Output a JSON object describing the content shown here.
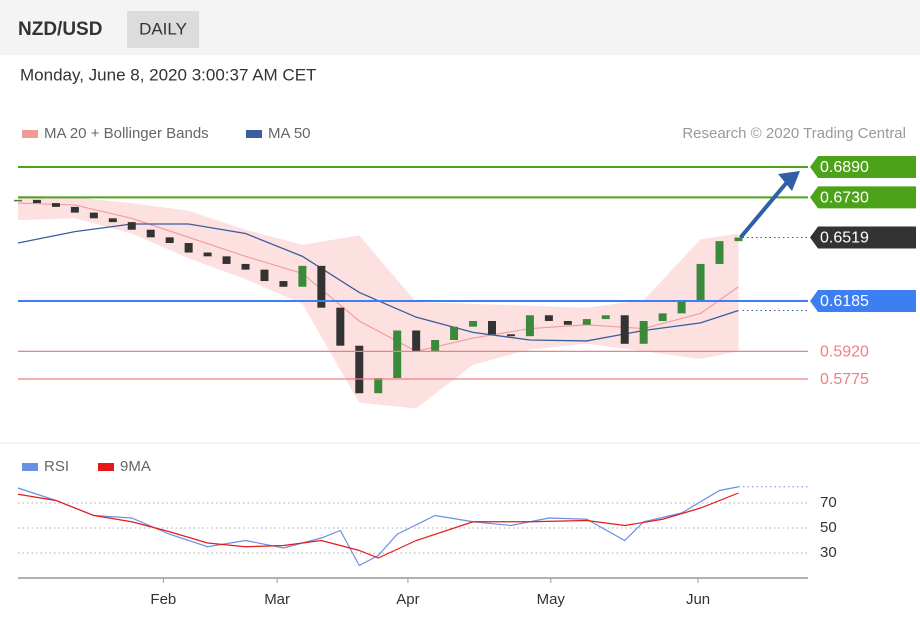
{
  "header": {
    "symbol": "NZD/USD",
    "period": "DAILY",
    "date": "Monday, June 8, 2020 3:00:37 AM CET"
  },
  "chart_data": [
    {
      "type": "candlestick",
      "source": "Research © 2020 Trading Central",
      "xlim": [
        0,
        125
      ],
      "ylim": [
        0.5454,
        0.6953
      ],
      "x": [
        0,
        3,
        6,
        9,
        12,
        15,
        18,
        21,
        24,
        27,
        30,
        33,
        36,
        39,
        42,
        45,
        48,
        51,
        54,
        57,
        60,
        63,
        66,
        69,
        72,
        75,
        78,
        81,
        84,
        87,
        90,
        93,
        96,
        99,
        102,
        105,
        108,
        111,
        114
      ],
      "values": [
        0.6717,
        0.67,
        0.668,
        0.665,
        0.662,
        0.66,
        0.656,
        0.652,
        0.649,
        0.644,
        0.642,
        0.638,
        0.635,
        0.629,
        0.626,
        0.637,
        0.615,
        0.595,
        0.57,
        0.578,
        0.603,
        0.592,
        0.598,
        0.605,
        0.608,
        0.601,
        0.6,
        0.611,
        0.608,
        0.606,
        0.609,
        0.611,
        0.596,
        0.608,
        0.612,
        0.619,
        0.638,
        0.65,
        0.6519
      ],
      "up_color": "#3b8a3b",
      "down_color": "#333333",
      "series": [
        {
          "name": "MA 20 + Bollinger Bands",
          "color": "#f29a9a",
          "band_color": "#fde1e1",
          "x": [
            0,
            9,
            18,
            27,
            36,
            45,
            54,
            63,
            72,
            81,
            90,
            99,
            108,
            114
          ],
          "values": [
            0.67,
            0.669,
            0.662,
            0.652,
            0.642,
            0.633,
            0.608,
            0.592,
            0.599,
            0.604,
            0.606,
            0.604,
            0.612,
            0.626
          ],
          "upper": [
            0.674,
            0.673,
            0.67,
            0.666,
            0.656,
            0.648,
            0.653,
            0.618,
            0.617,
            0.616,
            0.615,
            0.619,
            0.651,
            0.654
          ],
          "lower": [
            0.661,
            0.662,
            0.654,
            0.641,
            0.63,
            0.617,
            0.565,
            0.562,
            0.585,
            0.593,
            0.596,
            0.592,
            0.588,
            0.592
          ]
        },
        {
          "name": "MA 50",
          "color": "#3a5d9c",
          "x": [
            0,
            9,
            18,
            27,
            36,
            45,
            54,
            63,
            72,
            81,
            90,
            99,
            108,
            114
          ],
          "values": [
            0.649,
            0.655,
            0.659,
            0.659,
            0.654,
            0.642,
            0.623,
            0.61,
            0.602,
            0.598,
            0.5975,
            0.603,
            0.607,
            0.6135
          ]
        }
      ],
      "levels": [
        {
          "value": 0.689,
          "label": "0.6890",
          "color": "#4ca218",
          "boxed": true
        },
        {
          "value": 0.673,
          "label": "0.6730",
          "color": "#4ca218",
          "boxed": true
        },
        {
          "value": 0.6519,
          "label": "0.6519",
          "color": "#333333",
          "boxed": true,
          "dotted": true
        },
        {
          "value": 0.6185,
          "label": "0.6185",
          "color": "#3d7ff0",
          "boxed": true
        },
        {
          "value": 0.592,
          "label": "0.5920",
          "color": "#f08080",
          "boxed": false
        },
        {
          "value": 0.5775,
          "label": "0.5775",
          "color": "#f08080",
          "boxed": false
        }
      ]
    },
    {
      "type": "line",
      "xlim": [
        0,
        125
      ],
      "ylim": [
        12.4,
        88.4
      ],
      "yticks": [
        70,
        50,
        30
      ],
      "grid": true,
      "xticks": [
        {
          "value": 23,
          "label": "Feb"
        },
        {
          "value": 41,
          "label": "Mar"
        },
        {
          "value": 61.7,
          "label": "Apr"
        },
        {
          "value": 84.3,
          "label": "May"
        },
        {
          "value": 107.6,
          "label": "Jun"
        }
      ],
      "series": [
        {
          "name": "RSI",
          "color": "#6b8fe3",
          "x": [
            0,
            6,
            12,
            18,
            24,
            30,
            36,
            42,
            48,
            51,
            54,
            57,
            60,
            66,
            72,
            78,
            84,
            90,
            96,
            99,
            105,
            111,
            114
          ],
          "values": [
            82,
            72,
            60,
            58,
            45,
            35,
            40,
            34,
            42,
            48,
            20,
            28,
            45,
            60,
            55,
            52,
            58,
            57,
            40,
            55,
            62,
            80,
            83
          ]
        },
        {
          "name": "9MA",
          "color": "#e41a1a",
          "x": [
            0,
            6,
            12,
            18,
            24,
            30,
            36,
            42,
            48,
            54,
            57,
            63,
            72,
            81,
            90,
            96,
            102,
            108,
            114
          ],
          "values": [
            77,
            72,
            60,
            55,
            47,
            38,
            35,
            36,
            40,
            32,
            26,
            40,
            55,
            55,
            56,
            52,
            57,
            66,
            78
          ]
        }
      ]
    }
  ]
}
